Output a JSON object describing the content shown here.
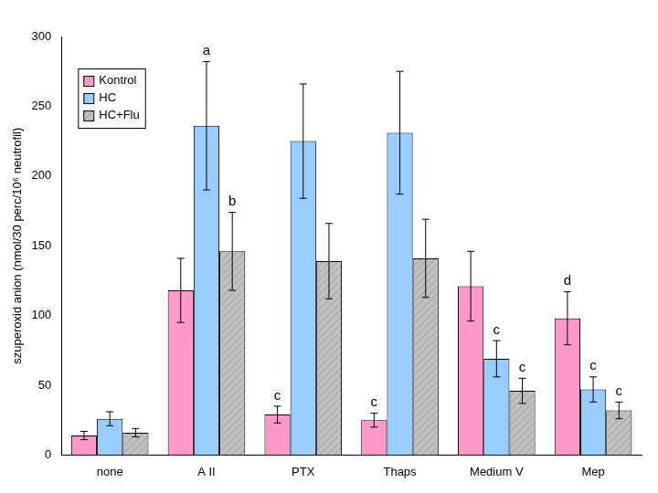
{
  "chart_data": {
    "type": "bar",
    "y_label": "szuperoxid anion (nmol/30 perc/10⁶ neutrofil)",
    "categories": [
      "none",
      "A II",
      "PTX",
      "Thaps",
      "Medium V",
      "Mep"
    ],
    "series": [
      {
        "name": "Kontrol",
        "color": "#ff99cc",
        "values": [
          14,
          118,
          29,
          25,
          121,
          98
        ],
        "errors": [
          3,
          23,
          6,
          5,
          25,
          19
        ]
      },
      {
        "name": "HC",
        "color": "#99ccff",
        "values": [
          26,
          236,
          225,
          231,
          69,
          47
        ],
        "errors": [
          5,
          46,
          41,
          44,
          13,
          9
        ]
      },
      {
        "name": "HC+Flu",
        "color": "#c0c0c0",
        "values": [
          16,
          146,
          139,
          141,
          46,
          32
        ],
        "errors": [
          3,
          28,
          27,
          28,
          9,
          6
        ]
      }
    ],
    "annotations": [
      {
        "text": "a",
        "category": "A II",
        "series": "HC"
      },
      {
        "text": "b",
        "category": "A II",
        "series": "HC+Flu"
      },
      {
        "text": "c",
        "category": "PTX",
        "series": "Kontrol"
      },
      {
        "text": "c",
        "category": "Thaps",
        "series": "Kontrol"
      },
      {
        "text": "c",
        "category": "Medium V",
        "series": "HC"
      },
      {
        "text": "c",
        "category": "Medium V",
        "series": "HC+Flu"
      },
      {
        "text": "d",
        "category": "Mep",
        "series": "Kontrol"
      },
      {
        "text": "c",
        "category": "Mep",
        "series": "HC"
      },
      {
        "text": "c",
        "category": "Mep",
        "series": "HC+Flu"
      }
    ],
    "ylim": [
      0,
      300
    ],
    "yticks": [
      0,
      50,
      100,
      150,
      200,
      250,
      300
    ],
    "grid": false,
    "legend": "upper left"
  }
}
